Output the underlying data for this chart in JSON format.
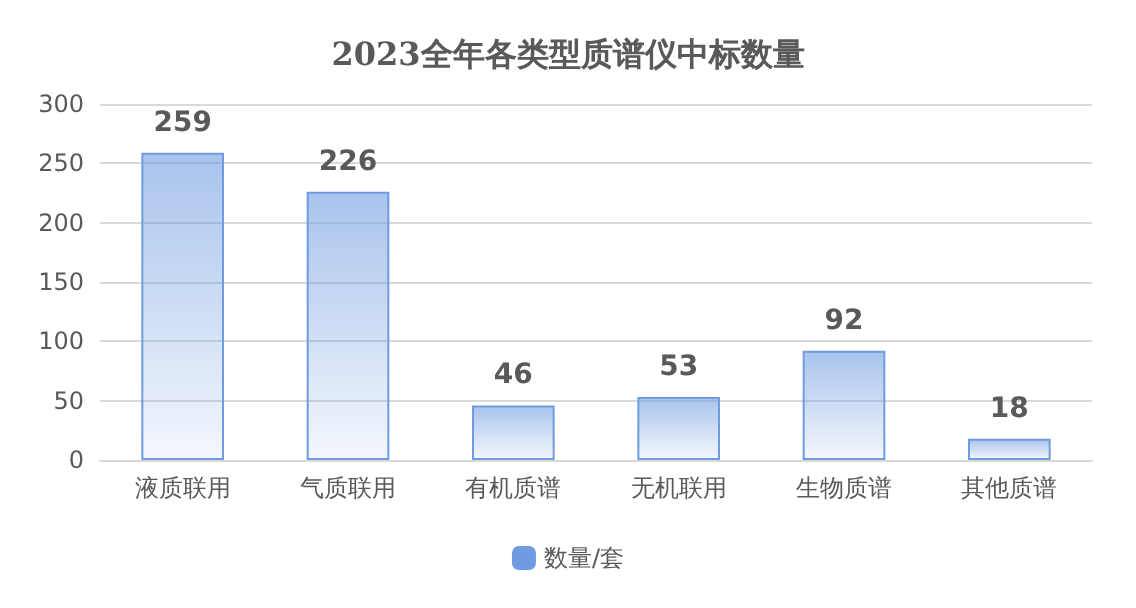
{
  "chart_data": {
    "type": "bar",
    "title": "2023全年各类型质谱仪中标数量",
    "categories": [
      "液质联用",
      "气质联用",
      "有机质谱",
      "无机联用",
      "生物质谱",
      "其他质谱"
    ],
    "series": [
      {
        "name": "数量/套",
        "color": "#6f9be0",
        "values": [
          259,
          226,
          46,
          53,
          92,
          18
        ]
      }
    ],
    "ylim": [
      0,
      300
    ],
    "yticks": [
      0,
      50,
      100,
      150,
      200,
      250,
      300
    ],
    "grid": "y",
    "legend": "bottom",
    "data_labels": true
  }
}
